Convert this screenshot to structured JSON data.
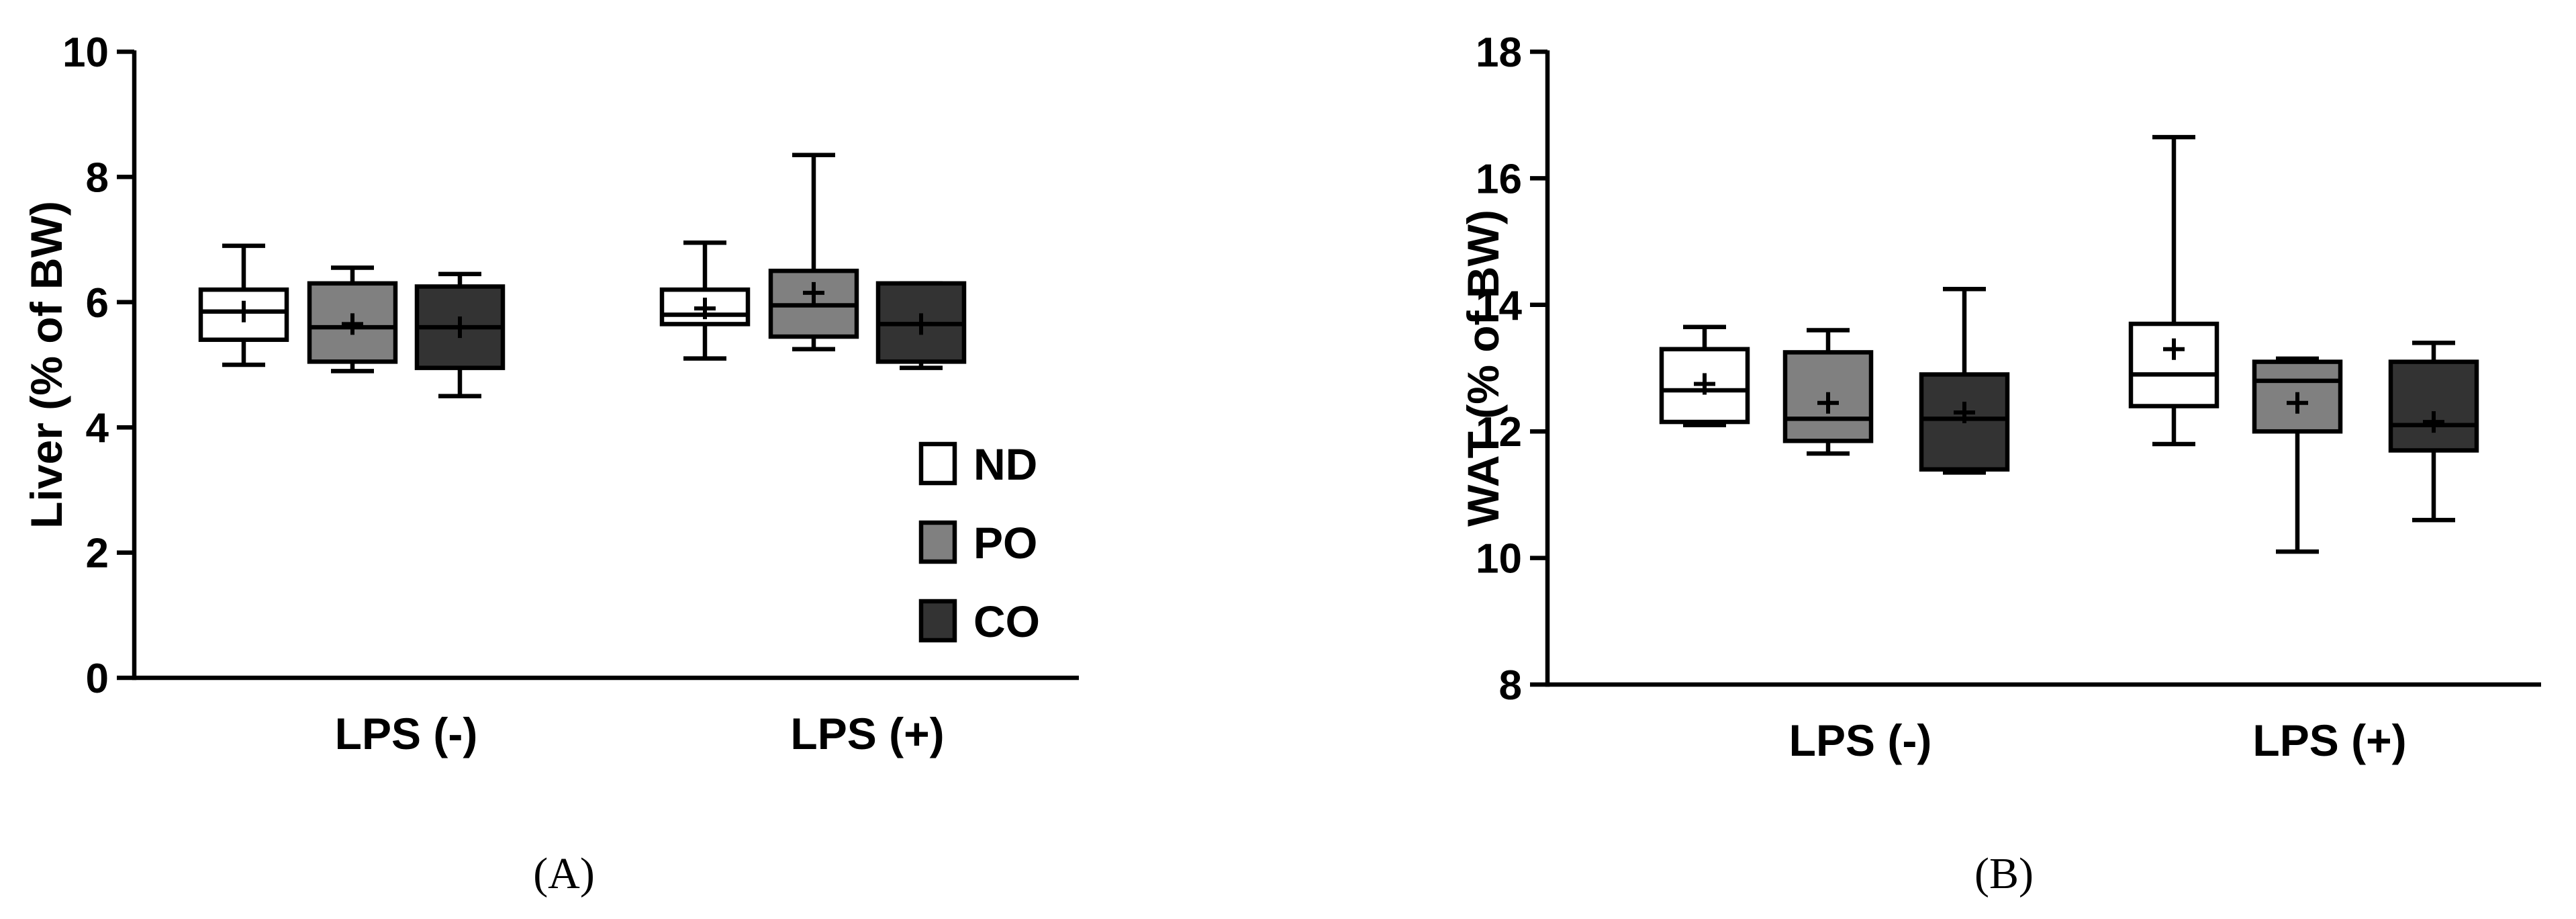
{
  "chart_data": [
    {
      "panel": "(A)",
      "type": "box",
      "ylabel": "Liver (% of BW)",
      "ylim": [
        0,
        10
      ],
      "yticks": [
        0,
        2,
        4,
        6,
        8,
        10
      ],
      "categories": [
        "LPS (-)",
        "LPS (+)"
      ],
      "legend": {
        "placement": "bottom-right",
        "entries": [
          "ND",
          "PO",
          "CO"
        ]
      },
      "series": [
        {
          "name": "ND",
          "color": "#ffffff",
          "boxes": [
            {
              "min": 5.0,
              "q1": 5.4,
              "median": 5.85,
              "q3": 6.2,
              "max": 6.9,
              "mean": 5.85
            },
            {
              "min": 5.1,
              "q1": 5.65,
              "median": 5.8,
              "q3": 6.2,
              "max": 6.95,
              "mean": 5.9
            }
          ]
        },
        {
          "name": "PO",
          "color": "#808080",
          "boxes": [
            {
              "min": 4.9,
              "q1": 5.05,
              "median": 5.6,
              "q3": 6.3,
              "max": 6.55,
              "mean": 5.65
            },
            {
              "min": 5.25,
              "q1": 5.45,
              "median": 5.95,
              "q3": 6.5,
              "max": 8.35,
              "mean": 6.15
            }
          ]
        },
        {
          "name": "CO",
          "color": "#333333",
          "boxes": [
            {
              "min": 4.5,
              "q1": 4.95,
              "median": 5.6,
              "q3": 6.25,
              "max": 6.45,
              "mean": 5.6
            },
            {
              "min": 4.95,
              "q1": 5.05,
              "median": 5.65,
              "q3": 6.3,
              "max": 6.3,
              "mean": 5.65
            }
          ]
        }
      ]
    },
    {
      "panel": "(B)",
      "type": "box",
      "ylabel": "WAT  (% of BW)",
      "ylim": [
        8,
        18
      ],
      "yticks": [
        8,
        10,
        12,
        14,
        16,
        18
      ],
      "categories": [
        "LPS (-)",
        "LPS (+)"
      ],
      "series": [
        {
          "name": "ND",
          "color": "#ffffff",
          "boxes": [
            {
              "min": 12.1,
              "q1": 12.15,
              "median": 12.65,
              "q3": 13.3,
              "max": 13.65,
              "mean": 12.75
            },
            {
              "min": 11.8,
              "q1": 12.4,
              "median": 12.9,
              "q3": 13.7,
              "max": 16.65,
              "mean": 13.3
            }
          ]
        },
        {
          "name": "PO",
          "color": "#808080",
          "boxes": [
            {
              "min": 11.65,
              "q1": 11.85,
              "median": 12.2,
              "q3": 13.25,
              "max": 13.6,
              "mean": 12.45
            },
            {
              "min": 10.1,
              "q1": 12.0,
              "median": 12.8,
              "q3": 13.1,
              "max": 13.15,
              "mean": 12.45
            }
          ]
        },
        {
          "name": "CO",
          "color": "#333333",
          "boxes": [
            {
              "min": 11.35,
              "q1": 11.4,
              "median": 12.2,
              "q3": 12.9,
              "max": 14.25,
              "mean": 12.3
            },
            {
              "min": 10.6,
              "q1": 11.7,
              "median": 12.1,
              "q3": 13.1,
              "max": 13.4,
              "mean": 12.15
            }
          ]
        }
      ]
    }
  ]
}
